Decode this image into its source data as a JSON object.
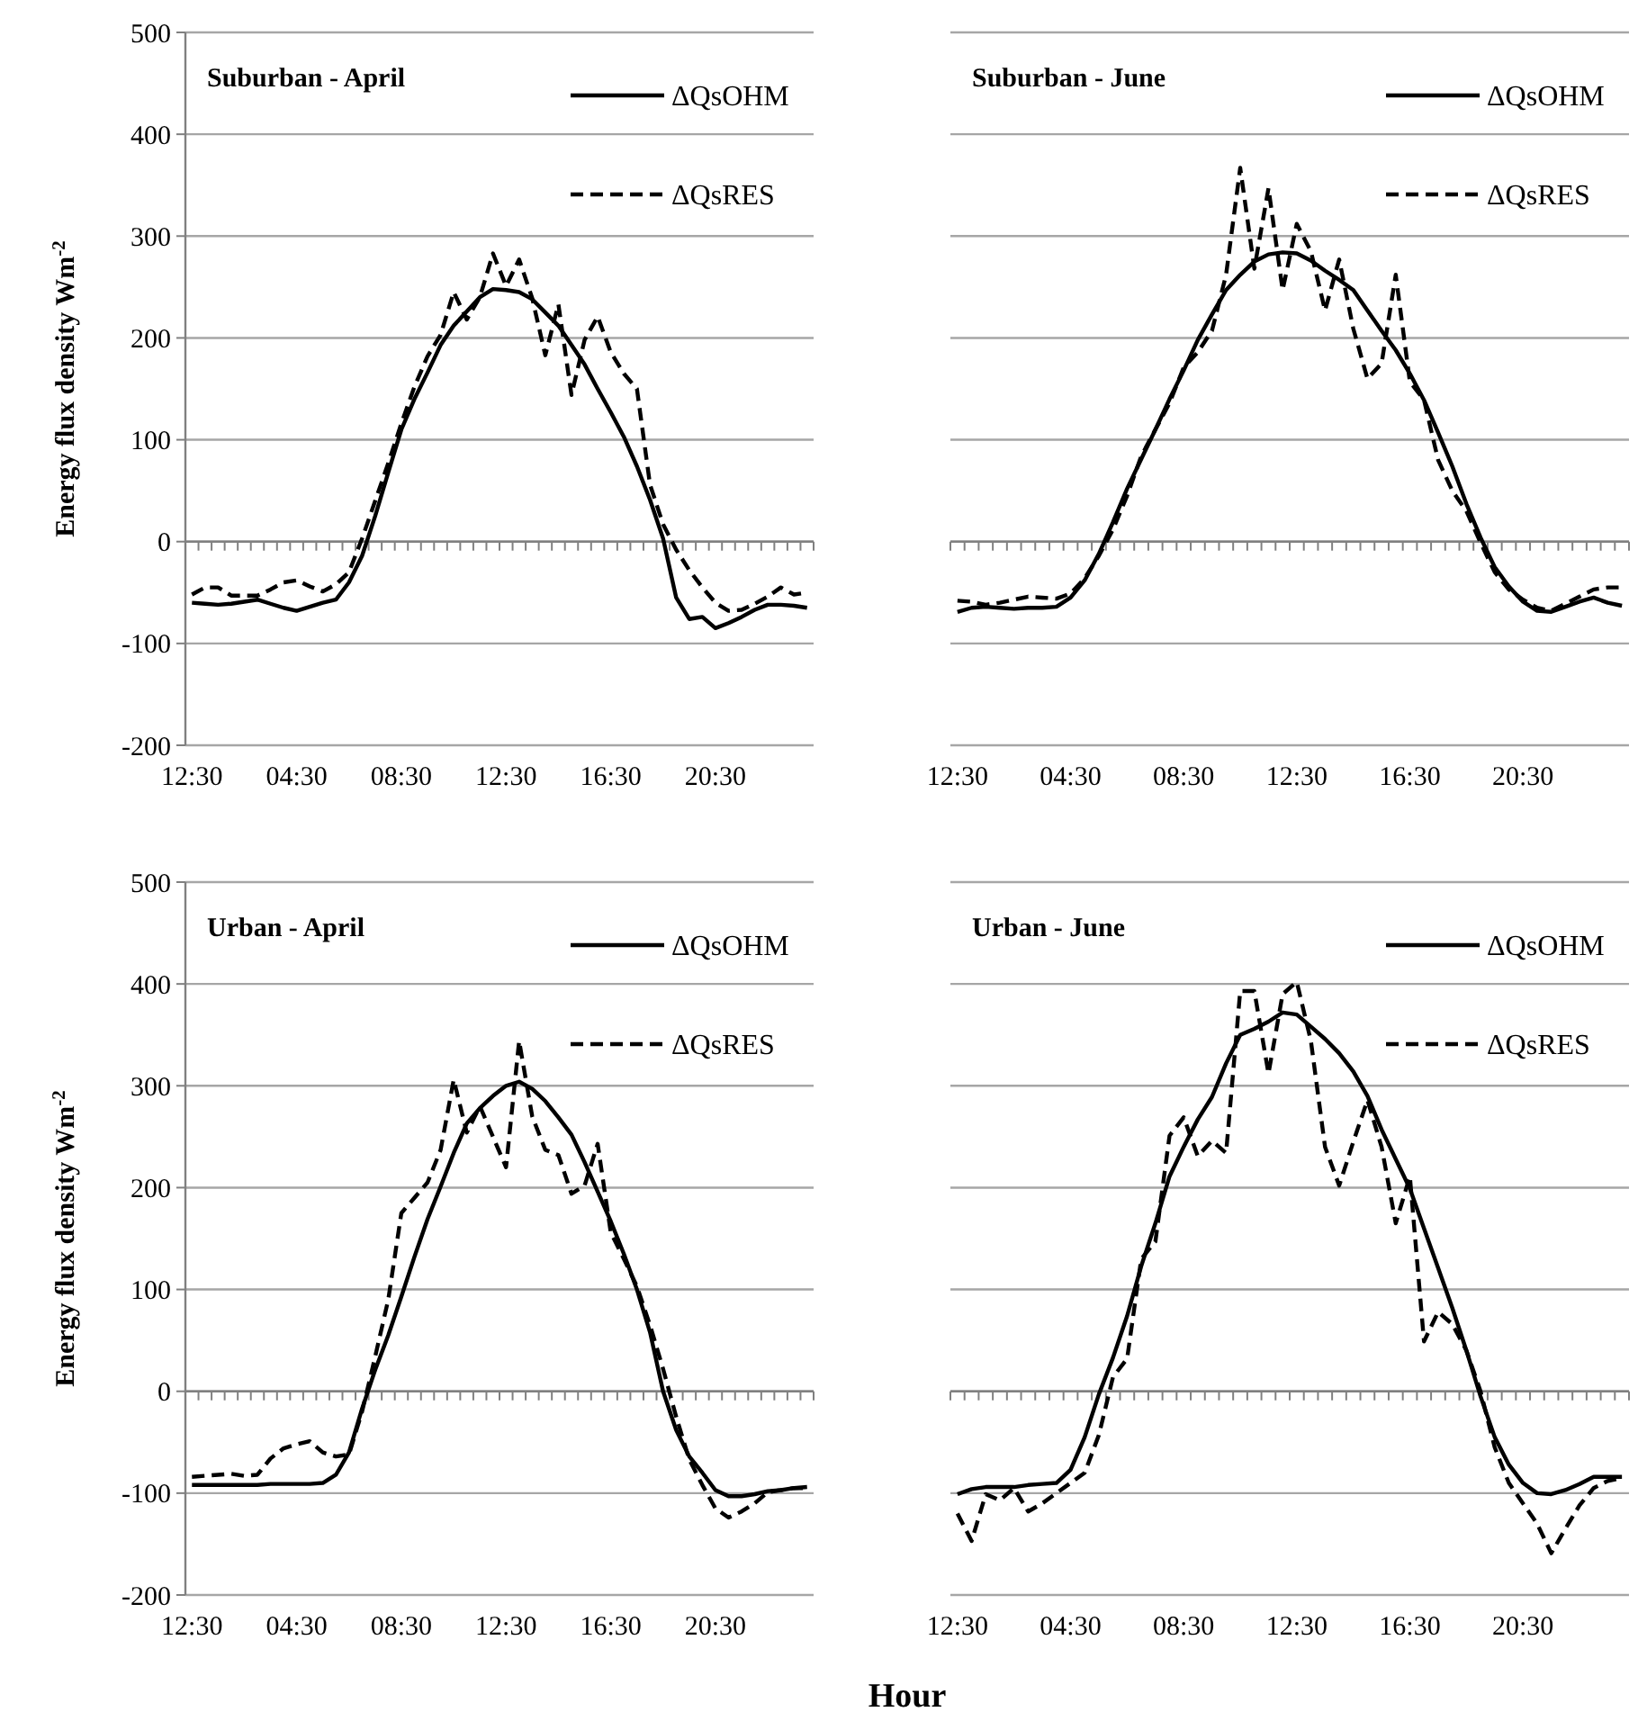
{
  "chart_data": [
    {
      "type": "line",
      "title": "Suburban - April",
      "ylabel": "Energy flux density Wm$^{-2}$",
      "categories": [
        "12:30",
        null,
        null,
        null,
        null,
        null,
        null,
        null,
        "04:30",
        null,
        null,
        null,
        null,
        null,
        null,
        null,
        "08:30",
        null,
        null,
        null,
        null,
        null,
        null,
        null,
        "12:30",
        null,
        null,
        null,
        null,
        null,
        null,
        null,
        "16:30",
        null,
        null,
        null,
        null,
        null,
        null,
        null,
        "20:30",
        null,
        null,
        null,
        null,
        null,
        null,
        null
      ],
      "ylim": [
        -200,
        500
      ],
      "yticks": [
        -200,
        -100,
        0,
        100,
        200,
        300,
        400,
        500
      ],
      "grid": "y",
      "legend": "top right",
      "marker": "none",
      "series": [
        {
          "name": "ΔQsOHM",
          "color": "#000000",
          "line_style": "solid",
          "values": [
            -60,
            -61,
            -62,
            -61,
            -59,
            -57,
            -61,
            -65,
            -68,
            -64,
            -60,
            -57,
            -40,
            -14,
            25,
            68,
            110,
            140,
            166,
            193,
            212,
            226,
            240,
            248,
            247,
            245,
            238,
            225,
            212,
            193,
            174,
            150,
            127,
            103,
            74,
            41,
            3,
            -55,
            -76,
            -74,
            -85,
            -80,
            -74,
            -67,
            -62,
            -62,
            -63,
            -65
          ]
        },
        {
          "name": "ΔQsRES",
          "color": "#000000",
          "line_style": "dashed",
          "values": [
            -52,
            -45,
            -45,
            -53,
            -53,
            -53,
            -47,
            -40,
            -38,
            -44,
            -49,
            -42,
            -30,
            3,
            40,
            77,
            116,
            152,
            182,
            203,
            245,
            218,
            240,
            283,
            251,
            277,
            239,
            183,
            233,
            144,
            198,
            221,
            186,
            165,
            150,
            56,
            17,
            -8,
            -28,
            -45,
            -60,
            -68,
            -67,
            -61,
            -54,
            -45,
            -52,
            -50
          ]
        }
      ]
    },
    {
      "type": "line",
      "title": "Suburban - June",
      "categories": [
        "12:30",
        null,
        null,
        null,
        null,
        null,
        null,
        null,
        "04:30",
        null,
        null,
        null,
        null,
        null,
        null,
        null,
        "08:30",
        null,
        null,
        null,
        null,
        null,
        null,
        null,
        "12:30",
        null,
        null,
        null,
        null,
        null,
        null,
        null,
        "16:30",
        null,
        null,
        null,
        null,
        null,
        null,
        null,
        "20:30",
        null,
        null,
        null,
        null,
        null,
        null,
        null
      ],
      "ylim": [
        -200,
        500
      ],
      "yticks": [
        -200,
        -100,
        0,
        100,
        200,
        300,
        400,
        500
      ],
      "tick_labels": "x",
      "grid": "y",
      "legend": "top right",
      "marker": "none",
      "series": [
        {
          "name": "ΔQsOHM",
          "color": "#000000",
          "line_style": "solid",
          "values": [
            -69,
            -65,
            -64,
            -65,
            -66,
            -65,
            -65,
            -64,
            -55,
            -38,
            -12,
            19,
            52,
            81,
            110,
            140,
            168,
            198,
            223,
            247,
            262,
            275,
            282,
            284,
            283,
            276,
            266,
            257,
            247,
            227,
            207,
            188,
            165,
            139,
            107,
            74,
            37,
            4,
            -25,
            -44,
            -59,
            -68,
            -69,
            -64,
            -59,
            -55,
            -60,
            -63
          ]
        },
        {
          "name": "ΔQsRES",
          "color": "#000000",
          "line_style": "dashed",
          "values": [
            -58,
            -59,
            -62,
            -60,
            -57,
            -54,
            -55,
            -56,
            -51,
            -36,
            -14,
            12,
            45,
            84,
            110,
            136,
            171,
            186,
            207,
            262,
            367,
            268,
            347,
            247,
            312,
            285,
            227,
            277,
            209,
            160,
            175,
            262,
            157,
            139,
            80,
            50,
            30,
            -1,
            -30,
            -47,
            -57,
            -65,
            -68,
            -61,
            -54,
            -47,
            -45,
            -45
          ]
        }
      ]
    },
    {
      "type": "line",
      "title": "Urban - April",
      "ylabel": "Energy flux density Wm$^{-2}$",
      "xlabel": "Hour",
      "categories": [
        "12:30",
        null,
        null,
        null,
        null,
        null,
        null,
        null,
        "04:30",
        null,
        null,
        null,
        null,
        null,
        null,
        null,
        "08:30",
        null,
        null,
        null,
        null,
        null,
        null,
        null,
        "12:30",
        null,
        null,
        null,
        null,
        null,
        null,
        null,
        "16:30",
        null,
        null,
        null,
        null,
        null,
        null,
        null,
        "20:30",
        null,
        null,
        null,
        null,
        null,
        null,
        null
      ],
      "ylim": [
        -200,
        500
      ],
      "yticks": [
        -200,
        -100,
        0,
        100,
        200,
        300,
        400,
        500
      ],
      "grid": "y",
      "legend": "top right",
      "marker": "none",
      "series": [
        {
          "name": "ΔQsOHM",
          "color": "#000000",
          "line_style": "solid",
          "values": [
            -92,
            -92,
            -92,
            -92,
            -92,
            -92,
            -91,
            -91,
            -91,
            -91,
            -90,
            -82,
            -60,
            -17,
            21,
            55,
            93,
            132,
            169,
            201,
            234,
            263,
            278,
            290,
            300,
            304,
            297,
            285,
            269,
            252,
            225,
            196,
            167,
            135,
            100,
            58,
            0,
            -38,
            -64,
            -80,
            -97,
            -103,
            -103,
            -101,
            -98,
            -97,
            -95,
            -94
          ]
        },
        {
          "name": "ΔQsRES",
          "color": "#000000",
          "line_style": "dashed",
          "values": [
            -84,
            -83,
            -82,
            -81,
            -83,
            -82,
            -66,
            -56,
            -52,
            -49,
            -60,
            -64,
            -62,
            -20,
            34,
            90,
            175,
            190,
            205,
            237,
            306,
            254,
            280,
            250,
            220,
            344,
            270,
            237,
            232,
            194,
            202,
            243,
            156,
            130,
            103,
            65,
            22,
            -25,
            -67,
            -92,
            -115,
            -124,
            -118,
            -110,
            -99,
            -97,
            -95,
            -95
          ]
        }
      ]
    },
    {
      "type": "line",
      "title": "Urban - June",
      "categories": [
        "12:30",
        null,
        null,
        null,
        null,
        null,
        null,
        null,
        "04:30",
        null,
        null,
        null,
        null,
        null,
        null,
        null,
        "08:30",
        null,
        null,
        null,
        null,
        null,
        null,
        null,
        "12:30",
        null,
        null,
        null,
        null,
        null,
        null,
        null,
        "16:30",
        null,
        null,
        null,
        null,
        null,
        null,
        null,
        "20:30",
        null,
        null,
        null,
        null,
        null,
        null,
        null
      ],
      "ylim": [
        -200,
        500
      ],
      "yticks": [
        -200,
        -100,
        0,
        100,
        200,
        300,
        400,
        500
      ],
      "tick_labels": "x",
      "grid": "y",
      "legend": "top right",
      "marker": "none",
      "series": [
        {
          "name": "ΔQsOHM",
          "color": "#000000",
          "line_style": "solid",
          "values": [
            -101,
            -96,
            -94,
            -94,
            -94,
            -92,
            -91,
            -90,
            -77,
            -45,
            -3,
            33,
            74,
            123,
            165,
            211,
            240,
            267,
            289,
            322,
            350,
            356,
            363,
            372,
            370,
            358,
            346,
            332,
            314,
            290,
            257,
            228,
            199,
            160,
            121,
            82,
            40,
            -5,
            -45,
            -72,
            -90,
            -100,
            -101,
            -97,
            -91,
            -84,
            -84,
            -84
          ]
        },
        {
          "name": "ΔQsRES",
          "color": "#000000",
          "line_style": "dashed",
          "values": [
            -120,
            -147,
            -101,
            -107,
            -95,
            -118,
            -110,
            -100,
            -90,
            -80,
            -43,
            14,
            32,
            130,
            147,
            251,
            269,
            231,
            246,
            234,
            393,
            393,
            312,
            390,
            402,
            344,
            240,
            202,
            245,
            286,
            240,
            165,
            211,
            49,
            78,
            66,
            40,
            0,
            -55,
            -90,
            -110,
            -130,
            -159,
            -135,
            -112,
            -95,
            -88,
            -85
          ]
        }
      ]
    }
  ]
}
